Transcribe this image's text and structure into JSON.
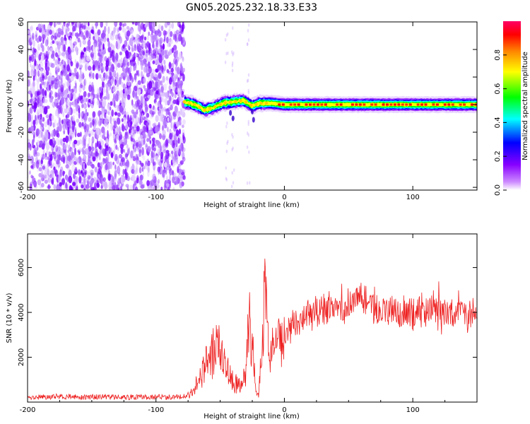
{
  "figure": {
    "title": "GN05.2025.232.18.33.E33"
  },
  "chart_data": [
    {
      "type": "heatmap",
      "xlabel": "Height of straight line (km)",
      "ylabel": "Frequency (Hz)",
      "xlim": [
        -200,
        150
      ],
      "ylim": [
        -62,
        60
      ],
      "x_ticks": [
        -200,
        -100,
        0,
        100
      ],
      "y_ticks": [
        60,
        40,
        20,
        0,
        -20,
        -40,
        -60
      ],
      "y_tick_labels": [
        "60",
        "40",
        "20",
        "0",
        "-20",
        "-40",
        "-60"
      ],
      "colorbar": {
        "label": "Normalized spectral amplitude",
        "range": [
          0.0,
          1.0
        ],
        "ticks": [
          0.0,
          0.2,
          0.4,
          0.6,
          0.8
        ],
        "tick_labels": [
          "0.0",
          "0.2",
          "0.4",
          "0.6",
          "0.8"
        ],
        "colormap": [
          "#ffffff",
          "#8800ff",
          "#0000ff",
          "#00ffff",
          "#00ff00",
          "#ffff00",
          "#ff8800",
          "#ff0000",
          "#ff0066"
        ]
      },
      "noise_region": {
        "x_range": [
          -200,
          -78
        ],
        "y_range": [
          -62,
          60
        ],
        "amplitude": 0.15
      },
      "signal_band": {
        "x_start": -78,
        "x_end": 150,
        "center_freq_hz": 0,
        "dip_points": [
          [
            -78,
            2
          ],
          [
            -70,
            0
          ],
          [
            -62,
            -4
          ],
          [
            -55,
            -2
          ],
          [
            -48,
            1
          ],
          [
            -40,
            2
          ],
          [
            -32,
            3
          ],
          [
            -25,
            -1
          ],
          [
            -20,
            1
          ],
          [
            -10,
            1
          ],
          [
            0,
            0
          ],
          [
            150,
            0
          ]
        ]
      },
      "grid": false
    },
    {
      "type": "line",
      "xlabel": "Height of straight line (km)",
      "ylabel": "SNR (10 * v/v)",
      "xlim": [
        -200,
        150
      ],
      "ylim": [
        0,
        7500
      ],
      "x_ticks": [
        -200,
        -100,
        0,
        100
      ],
      "y_ticks": [
        2000,
        4000,
        6000
      ],
      "series": [
        {
          "color": "#ee2222",
          "x": [
            -200,
            -180,
            -160,
            -140,
            -120,
            -100,
            -85,
            -75,
            -70,
            -65,
            -60,
            -55,
            -52,
            -50,
            -45,
            -42,
            -40,
            -35,
            -30,
            -28,
            -25,
            -22,
            -20,
            -18,
            -15,
            -12,
            -10,
            -5,
            0,
            5,
            10,
            15,
            20,
            25,
            30,
            35,
            40,
            45,
            50,
            55,
            60,
            65,
            70,
            75,
            80,
            85,
            90,
            95,
            100,
            105,
            110,
            115,
            120,
            125,
            130,
            135,
            140,
            145,
            150
          ],
          "y": [
            200,
            250,
            220,
            240,
            210,
            230,
            220,
            300,
            600,
            1200,
            1800,
            2200,
            2600,
            2000,
            1400,
            1100,
            900,
            700,
            1200,
            4000,
            2500,
            400,
            300,
            2500,
            5000,
            2000,
            2400,
            2600,
            3000,
            3200,
            3500,
            3700,
            3800,
            4000,
            4050,
            4100,
            4150,
            4200,
            4300,
            4600,
            4700,
            4500,
            4300,
            4000,
            4200,
            4100,
            4000,
            4200,
            3900,
            4300,
            3800,
            4200,
            4000,
            3700,
            4100,
            3800,
            4000,
            3800,
            3900
          ],
          "noise_amplitude": 900
        }
      ],
      "grid": false
    }
  ]
}
